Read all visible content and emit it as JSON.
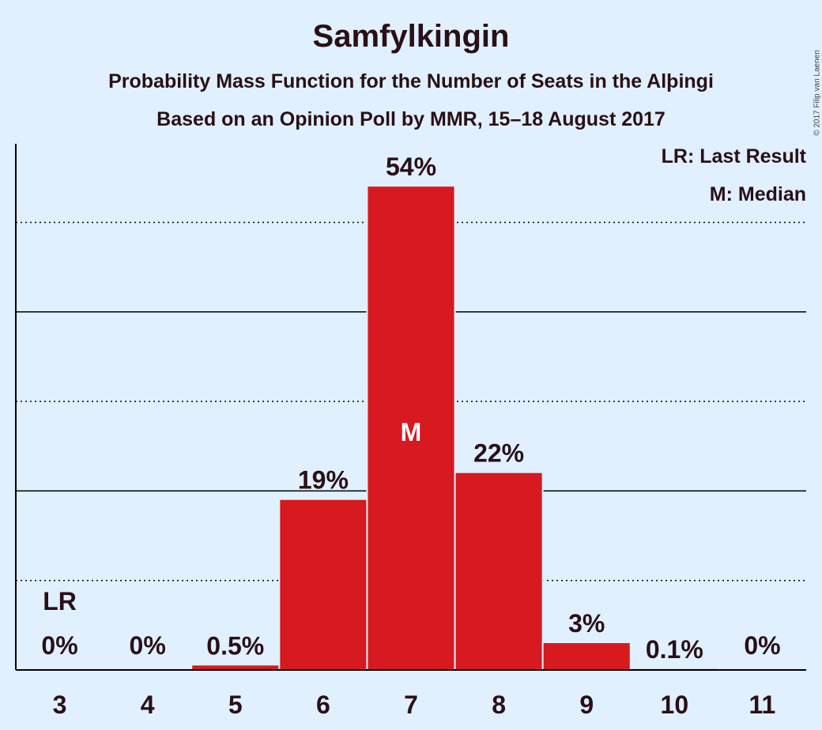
{
  "title": "Samfylkingin",
  "subtitle_line1": "Probability Mass Function for the Number of Seats in the Alþingi",
  "subtitle_line2": "Based on an Opinion Poll by MMR, 15–18 August 2017",
  "legend": {
    "last_result": "LR: Last Result",
    "median": "M: Median"
  },
  "copyright": "© 2017 Filip van Laenen",
  "colors": {
    "background": "#e0f0ff",
    "bar": "#d71920",
    "text": "#2a0f16"
  },
  "chart_data": {
    "type": "bar",
    "title": "Samfylkingin",
    "categories": [
      "3",
      "4",
      "5",
      "6",
      "7",
      "8",
      "9",
      "10",
      "11"
    ],
    "values": [
      0,
      0,
      0.5,
      19,
      54,
      22,
      3,
      0.1,
      0
    ],
    "labels": [
      "0%",
      "0%",
      "0.5%",
      "19%",
      "54%",
      "22%",
      "3%",
      "0.1%",
      "0%"
    ],
    "last_result_index": 0,
    "last_result_label": "LR",
    "median_index": 4,
    "median_label": "M",
    "ylim": [
      0,
      59.4
    ],
    "solid_gridlines": [
      20,
      40
    ],
    "dotted_gridlines": [
      10,
      30,
      50
    ],
    "legend_position": "top-right"
  }
}
